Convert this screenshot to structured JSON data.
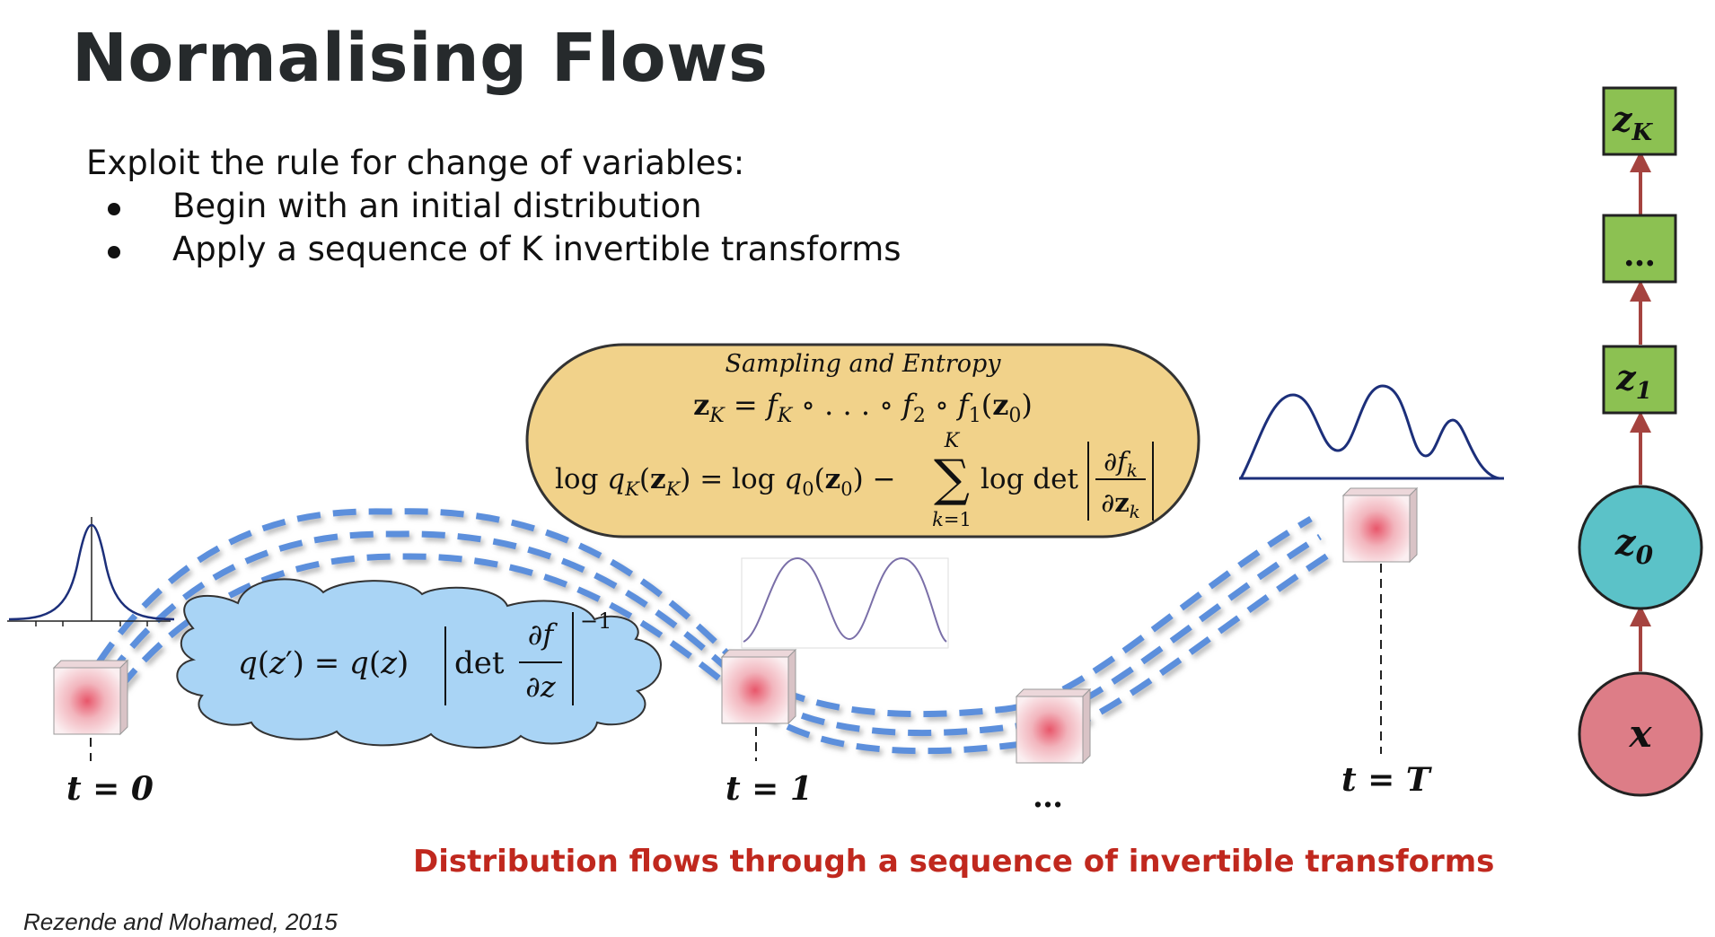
{
  "slide": {
    "title": "Normalising Flows",
    "intro": "Exploit the rule for change of variables:",
    "bullets": [
      "Begin with an initial distribution",
      "Apply a sequence of K invertible transforms"
    ],
    "caption": "Distribution flows through a sequence of invertible transforms",
    "citation": "Rezende and Mohamed, 2015"
  },
  "diagram": {
    "time_labels": [
      "t = 0",
      "t = 1",
      "…",
      "t = T"
    ],
    "bubble_title": "Sampling and Entropy",
    "colors": {
      "bubble_fill": "#f1d28a",
      "cloud_fill": "#a9d4f5",
      "flow_dash": "#5b8fdc",
      "curve": "#1c2f7a",
      "node_green": "#8cc152",
      "node_teal": "#5bc2c8",
      "node_red": "#dd7d87",
      "arrow": "#a5433f",
      "caption": "#c0281e"
    }
  },
  "chain": {
    "nodes": [
      "x",
      "z0",
      "z1",
      "…",
      "zK"
    ]
  }
}
